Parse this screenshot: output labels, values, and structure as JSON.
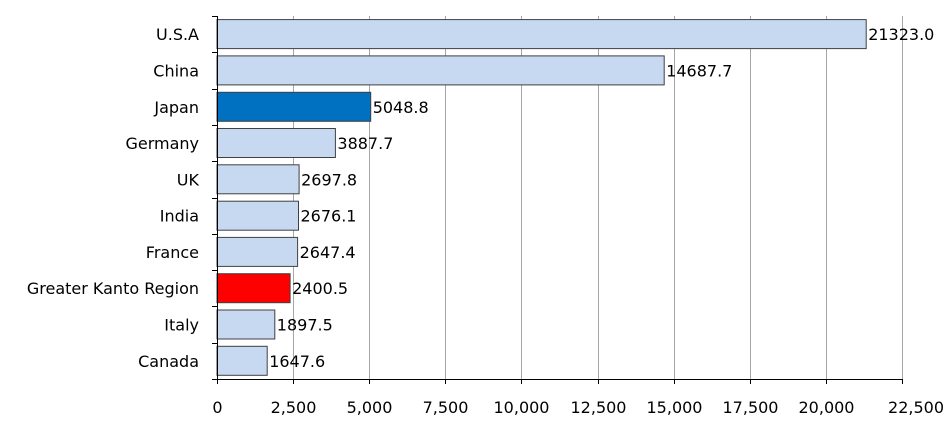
{
  "chart_data": {
    "type": "bar",
    "orientation": "horizontal",
    "title": "",
    "xlabel": "",
    "ylabel": "",
    "categories": [
      "U.S.A",
      "China",
      "Japan",
      "Germany",
      "UK",
      "India",
      "France",
      "Greater Kanto Region",
      "Italy",
      "Canada"
    ],
    "values": [
      21323.0,
      14687.7,
      5048.8,
      3887.7,
      2697.8,
      2676.1,
      2647.4,
      2400.5,
      1897.5,
      1647.6
    ],
    "value_labels": [
      "21323.0",
      "14687.7",
      "5048.8",
      "3887.7",
      "2697.8",
      "2676.1",
      "2647.4",
      "2400.5",
      "1897.5",
      "1647.6"
    ],
    "xlim": [
      0,
      22500
    ],
    "x_ticks": [
      0,
      2500,
      5000,
      7500,
      10000,
      12500,
      15000,
      17500,
      20000,
      22500
    ],
    "x_tick_labels": [
      "0",
      "2,500",
      "5,000",
      "7,500",
      "10,000",
      "12,500",
      "15,000",
      "17,500",
      "20,000",
      "22,500"
    ],
    "grid": "vertical",
    "legend": "none",
    "colors": {
      "default": "#c6d9f1",
      "Japan": "#0070c0",
      "Greater Kanto Region": "#ff0000",
      "bar_stroke": "#404040",
      "grid": "#a6a6a6",
      "axis": "#000000"
    }
  }
}
